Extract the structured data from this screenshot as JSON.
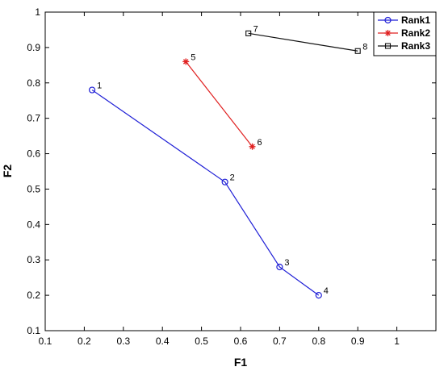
{
  "chart_data": {
    "type": "line",
    "xlabel": "F1",
    "ylabel": "F2",
    "xlim": [
      0.1,
      1.1
    ],
    "ylim": [
      0.1,
      1.0
    ],
    "xticks": [
      0.1,
      0.2,
      0.3,
      0.4,
      0.5,
      0.6,
      0.7,
      0.8,
      0.9,
      1
    ],
    "yticks": [
      0.1,
      0.2,
      0.3,
      0.4,
      0.5,
      0.6,
      0.7,
      0.8,
      0.9,
      1
    ],
    "grid": false,
    "legend_position": "top-right",
    "series": [
      {
        "name": "Rank1",
        "color": "#1f1fd6",
        "marker": "circle",
        "points": [
          {
            "x": 0.22,
            "y": 0.78,
            "label": "1"
          },
          {
            "x": 0.56,
            "y": 0.52,
            "label": "2"
          },
          {
            "x": 0.7,
            "y": 0.28,
            "label": "3"
          },
          {
            "x": 0.8,
            "y": 0.2,
            "label": "4"
          }
        ]
      },
      {
        "name": "Rank2",
        "color": "#e02020",
        "marker": "asterisk",
        "points": [
          {
            "x": 0.46,
            "y": 0.86,
            "label": "5"
          },
          {
            "x": 0.63,
            "y": 0.62,
            "label": "6"
          }
        ]
      },
      {
        "name": "Rank3",
        "color": "#111111",
        "marker": "square",
        "points": [
          {
            "x": 0.62,
            "y": 0.94,
            "label": "7"
          },
          {
            "x": 0.9,
            "y": 0.89,
            "label": "8"
          }
        ]
      }
    ]
  }
}
